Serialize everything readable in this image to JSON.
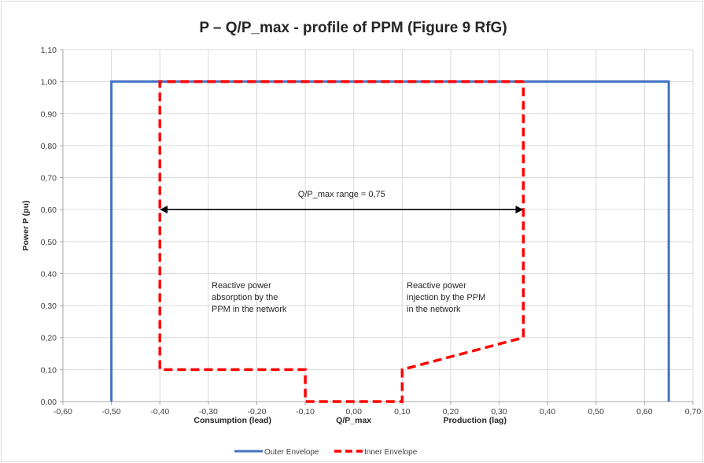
{
  "chart_data": {
    "type": "line",
    "title": "P – Q/P_max - profile of PPM (Figure 9 RfG)",
    "ylabel": "Power  P (pu)",
    "xlabel": "Q/P_max",
    "xlabel_left": "Consumption (lead)",
    "xlabel_right": "Production (lag)",
    "xlim": [
      -0.6,
      0.7
    ],
    "ylim": [
      0.0,
      1.1
    ],
    "x_ticks": [
      -0.6,
      -0.5,
      -0.4,
      -0.3,
      -0.2,
      -0.1,
      0.0,
      0.1,
      0.2,
      0.3,
      0.4,
      0.5,
      0.6,
      0.7
    ],
    "x_tick_labels": [
      "-0,60",
      "-0,50",
      "-0,40",
      "-0,30",
      "-0,20",
      "-0,10",
      "0,00",
      "0,10",
      "0,20",
      "0,30",
      "0,40",
      "0,50",
      "0,60",
      "0,70"
    ],
    "y_ticks": [
      0.0,
      0.1,
      0.2,
      0.3,
      0.4,
      0.5,
      0.6,
      0.7,
      0.8,
      0.9,
      1.0,
      1.1
    ],
    "y_tick_labels": [
      "0,00",
      "0,10",
      "0,20",
      "0,30",
      "0,40",
      "0,50",
      "0,60",
      "0,70",
      "0,80",
      "0,90",
      "1,00",
      "1,10"
    ],
    "grid": true,
    "legend_position": "bottom",
    "series": [
      {
        "name": "Outer Envelope",
        "color": "#4472c4",
        "style": "solid",
        "points": [
          [
            -0.5,
            0.0
          ],
          [
            -0.5,
            1.0
          ],
          [
            0.65,
            1.0
          ],
          [
            0.65,
            0.0
          ]
        ]
      },
      {
        "name": "Inner Envelope",
        "color": "#ff0000",
        "style": "dashed",
        "points": [
          [
            0.35,
            1.0
          ],
          [
            -0.4,
            1.0
          ],
          [
            -0.4,
            0.1
          ],
          [
            -0.1,
            0.1
          ],
          [
            -0.1,
            0.0
          ],
          [
            0.1,
            0.0
          ],
          [
            0.1,
            0.1
          ],
          [
            0.35,
            0.2
          ],
          [
            0.35,
            1.0
          ]
        ]
      }
    ],
    "annotations": [
      {
        "id": "range",
        "text": "Q/P_max range = 0,75",
        "x_from": -0.4,
        "x_to": 0.35,
        "y": 0.6
      },
      {
        "id": "absorption",
        "lines": [
          "Reactive power",
          "absorption by the",
          "PPM in the network"
        ]
      },
      {
        "id": "injection",
        "lines": [
          "Reactive power",
          "injection by the PPM",
          "in the network"
        ]
      }
    ]
  }
}
